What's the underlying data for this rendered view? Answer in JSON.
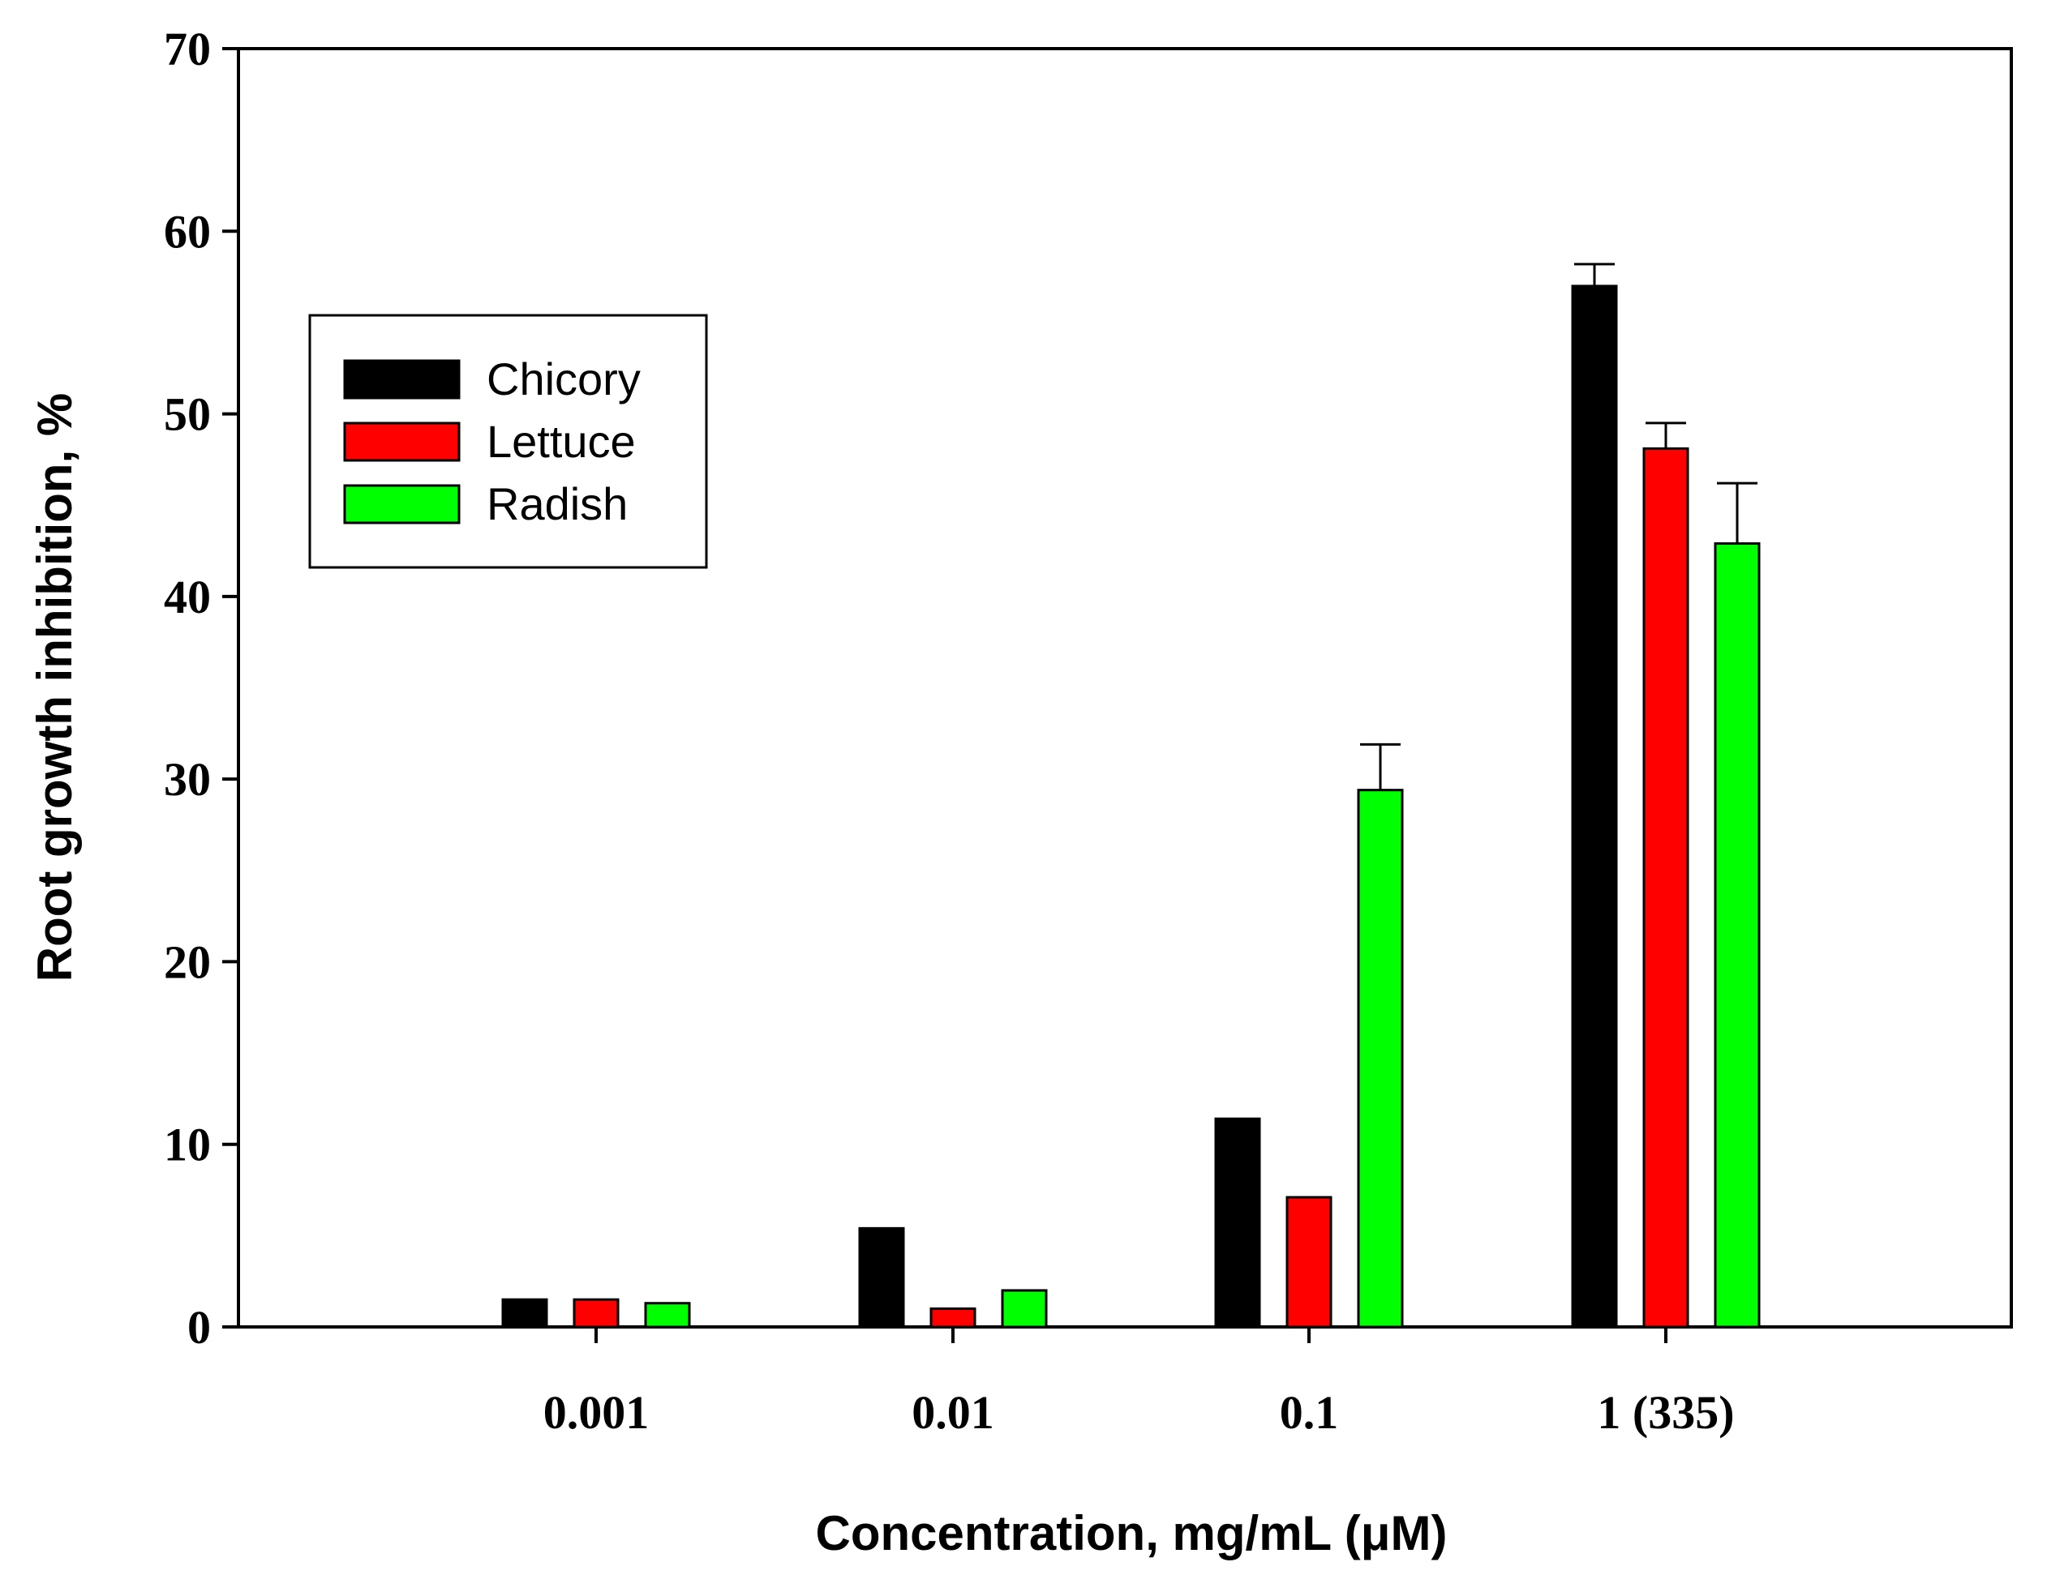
{
  "chart_data": {
    "type": "bar",
    "title": "",
    "xlabel": "Concentration, mg/mL (μM)",
    "ylabel": "Root growth inhibition, %",
    "categories": [
      "0.001",
      "0.01",
      "0.1",
      "1 (335)"
    ],
    "ylim": [
      0,
      70
    ],
    "yticks": [
      "0",
      "10",
      "20",
      "30",
      "40",
      "50",
      "60",
      "70"
    ],
    "grid": false,
    "legend_position": "upper-left",
    "series": [
      {
        "name": "Chicory",
        "color": "#000000",
        "values": [
          1.5,
          5.4,
          11.4,
          57.0
        ],
        "errors": [
          0.0,
          0.0,
          0.0,
          1.2
        ]
      },
      {
        "name": "Lettuce",
        "color": "#ff0000",
        "values": [
          1.5,
          1.0,
          7.1,
          48.1
        ],
        "errors": [
          0.0,
          0.0,
          0.0,
          1.4
        ]
      },
      {
        "name": "Radish",
        "color": "#00ff00",
        "values": [
          1.3,
          2.0,
          29.4,
          42.9
        ],
        "errors": [
          0.0,
          0.0,
          2.5,
          3.3
        ]
      }
    ]
  }
}
